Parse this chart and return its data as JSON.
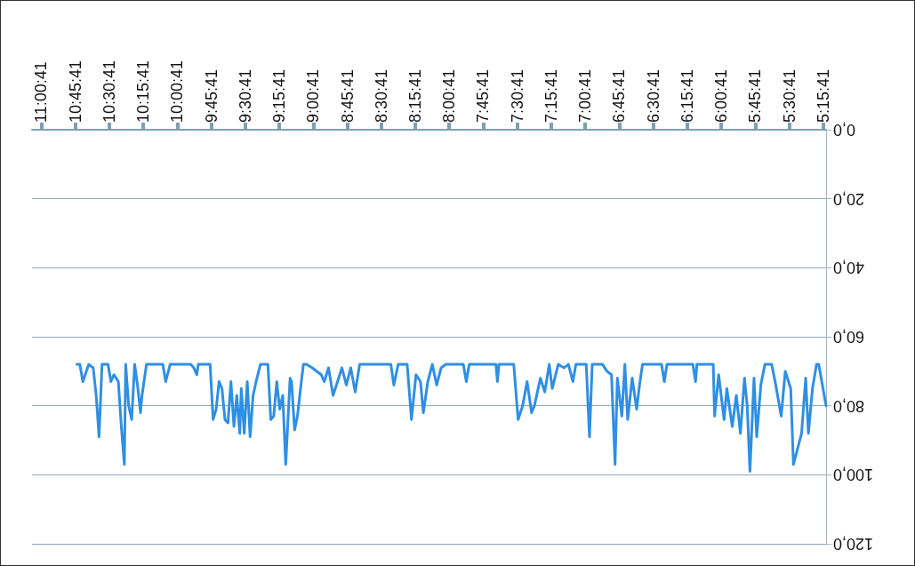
{
  "chart_data": {
    "type": "line",
    "x": [
      5.24,
      5.294,
      5.31,
      5.34,
      5.37,
      5.39,
      5.42,
      5.48,
      5.5,
      5.54,
      5.57,
      5.61,
      5.64,
      5.69,
      5.72,
      5.75,
      5.77,
      5.8,
      5.82,
      5.84,
      5.87,
      5.9,
      5.93,
      5.97,
      5.99,
      6.03,
      6.06,
      6.07,
      6.19,
      6.2,
      6.22,
      6.41,
      6.43,
      6.45,
      6.59,
      6.612,
      6.633,
      6.666,
      6.699,
      6.72,
      6.742,
      6.775,
      6.792,
      6.818,
      6.851,
      6.884,
      6.96,
      6.98,
      7.004,
      7.058,
      7.08,
      7.102,
      7.135,
      7.167,
      7.21,
      7.254,
      7.276,
      7.309,
      7.341,
      7.385,
      7.406,
      7.439,
      7.472,
      7.505,
      7.537,
      7.646,
      7.657,
      7.668,
      7.864,
      7.886,
      7.908,
      8.038,
      8.071,
      8.104,
      8.136,
      8.169,
      8.202,
      8.223,
      8.256,
      8.289,
      8.321,
      8.387,
      8.419,
      8.441,
      8.67,
      8.703,
      8.736,
      8.768,
      8.801,
      8.833,
      8.866,
      8.899,
      8.931,
      8.953,
      9.019,
      9.062,
      9.084,
      9.105,
      9.128,
      9.149,
      9.171,
      9.182,
      9.214,
      9.236,
      9.258,
      9.28,
      9.302,
      9.324,
      9.345,
      9.4,
      9.432,
      9.454,
      9.476,
      9.497,
      9.519,
      9.541,
      9.552,
      9.574,
      9.595,
      9.617,
      9.639,
      9.661,
      9.683,
      9.704,
      9.726,
      9.748,
      9.77,
      9.857,
      9.868,
      9.89,
      9.912,
      10.064,
      10.097,
      10.118,
      10.238,
      10.271,
      10.282,
      10.304,
      10.325,
      10.347,
      10.369,
      10.391,
      10.401,
      10.423,
      10.445,
      10.477,
      10.5,
      10.521,
      10.543,
      10.565,
      10.587,
      10.608,
      10.63,
      10.663,
      10.706,
      10.728,
      10.75
    ],
    "series": [
      {
        "color": "#2f8fe3",
        "values": [
          80,
          68,
          68,
          75,
          88,
          72,
          88,
          97,
          75,
          70,
          83,
          74,
          68,
          68,
          74,
          89,
          72,
          99,
          80,
          72,
          88,
          77,
          86,
          75,
          84,
          71,
          83,
          68,
          68,
          73,
          68,
          68,
          73,
          68,
          68,
          74,
          81,
          72,
          84,
          68,
          83,
          72,
          97,
          71,
          70,
          68,
          68,
          89,
          68,
          68,
          68,
          73,
          68,
          69,
          68,
          75,
          68,
          76,
          72,
          80,
          82,
          73,
          80,
          84,
          68,
          68,
          73,
          68,
          68,
          73,
          68,
          68,
          69,
          74,
          68,
          73,
          82,
          73,
          71,
          84,
          68,
          68,
          74,
          68,
          68,
          76,
          69,
          74,
          69,
          73,
          77,
          69,
          73,
          71,
          69,
          68,
          68,
          75,
          83,
          87,
          73,
          72,
          97,
          77,
          81,
          73,
          83,
          84,
          68,
          68,
          73,
          77,
          89,
          73,
          88,
          75,
          88,
          77,
          86,
          73,
          85,
          84,
          75,
          73,
          81,
          84,
          68,
          68,
          71,
          69,
          68,
          68,
          73,
          68,
          68,
          77,
          82,
          74,
          68,
          84,
          80,
          68,
          97,
          86,
          73,
          71,
          73,
          68,
          68,
          68,
          89,
          77,
          69,
          68,
          73,
          68,
          68
        ]
      }
    ],
    "xlim": [
      11.08,
      5.24
    ],
    "xticks": [
      {
        "value": 5.2614,
        "label": "5:15:41"
      },
      {
        "value": 5.5114,
        "label": "5:30:41"
      },
      {
        "value": 5.7614,
        "label": "5:45:41"
      },
      {
        "value": 6.0114,
        "label": "6:00:41"
      },
      {
        "value": 6.2614,
        "label": "6:15:41"
      },
      {
        "value": 6.5114,
        "label": "6:30:41"
      },
      {
        "value": 6.7614,
        "label": "6:45:41"
      },
      {
        "value": 7.0114,
        "label": "7:00:41"
      },
      {
        "value": 7.2614,
        "label": "7:15:41"
      },
      {
        "value": 7.5114,
        "label": "7:30:41"
      },
      {
        "value": 7.7614,
        "label": "7:45:41"
      },
      {
        "value": 8.0114,
        "label": "8:00:41"
      },
      {
        "value": 8.2614,
        "label": "8:15:41"
      },
      {
        "value": 8.5114,
        "label": "8:30:41"
      },
      {
        "value": 8.7614,
        "label": "8:45:41"
      },
      {
        "value": 9.0114,
        "label": "9:00:41"
      },
      {
        "value": 9.2614,
        "label": "9:15:41"
      },
      {
        "value": 9.5114,
        "label": "9:30:41"
      },
      {
        "value": 9.7614,
        "label": "9:45:41"
      },
      {
        "value": 10.0114,
        "label": "10:00:41"
      },
      {
        "value": 10.2614,
        "label": "10:15:41"
      },
      {
        "value": 10.5114,
        "label": "10:30:41"
      },
      {
        "value": 10.7614,
        "label": "10:45:41"
      },
      {
        "value": 11.0114,
        "label": "11:00:41"
      }
    ],
    "ylim": [
      120,
      0
    ],
    "yticks": [
      {
        "value": 0,
        "label": "0,0"
      },
      {
        "value": 20,
        "label": "20,0"
      },
      {
        "value": 40,
        "label": "40,0"
      },
      {
        "value": 60,
        "label": "60,0"
      },
      {
        "value": 80,
        "label": "80,0"
      },
      {
        "value": 100,
        "label": "100,0"
      },
      {
        "value": 120,
        "label": "120,0"
      }
    ],
    "grid": "y",
    "marker": "none",
    "line_style": "solid"
  }
}
